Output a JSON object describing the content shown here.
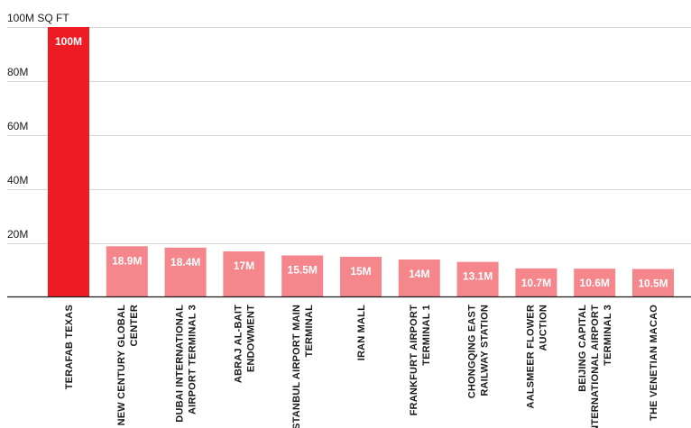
{
  "chart_data": {
    "type": "bar",
    "caption": "",
    "ylabel": "100M SQ FT",
    "yticks": [
      {
        "value": 80,
        "label": "80M"
      },
      {
        "value": 60,
        "label": "60M"
      },
      {
        "value": 40,
        "label": "40M"
      },
      {
        "value": 20,
        "label": "20M"
      }
    ],
    "ylim": [
      0,
      100
    ],
    "grid": true,
    "categories": [
      [
        "TERAFAB TEXAS"
      ],
      [
        "NEW CENTURY GLOBAL",
        "CENTER"
      ],
      [
        "DUBAI INTERNATIONAL",
        "AIRPORT TERMINAL 3"
      ],
      [
        "ABRAJ AL-BAIT",
        "ENDOWMENT"
      ],
      [
        "ISTANBUL AIRPORT MAIN",
        "TERMINAL"
      ],
      [
        "IRAN MALL"
      ],
      [
        "FRANKFURT AIRPORT",
        "TERMINAL 1"
      ],
      [
        "CHONGQING EAST",
        "RAILWAY STATION"
      ],
      [
        "AALSMEER FLOWER",
        "AUCTION"
      ],
      [
        "BEIJING CAPITAL",
        "INTERNATIONAL AIRPORT",
        "TERMINAL 3"
      ],
      [
        "THE VENETIAN MACAO"
      ]
    ],
    "values": [
      100,
      18.9,
      18.4,
      17,
      15.5,
      15,
      14,
      13.1,
      10.7,
      10.6,
      10.5
    ],
    "value_labels": [
      "100M",
      "18.9M",
      "18.4M",
      "17M",
      "15.5M",
      "15M",
      "14M",
      "13.1M",
      "10.7M",
      "10.6M",
      "10.5M"
    ],
    "colors": {
      "highlight": "#ED1C24",
      "bar": "#F4868C",
      "highlight_index": 0
    }
  }
}
